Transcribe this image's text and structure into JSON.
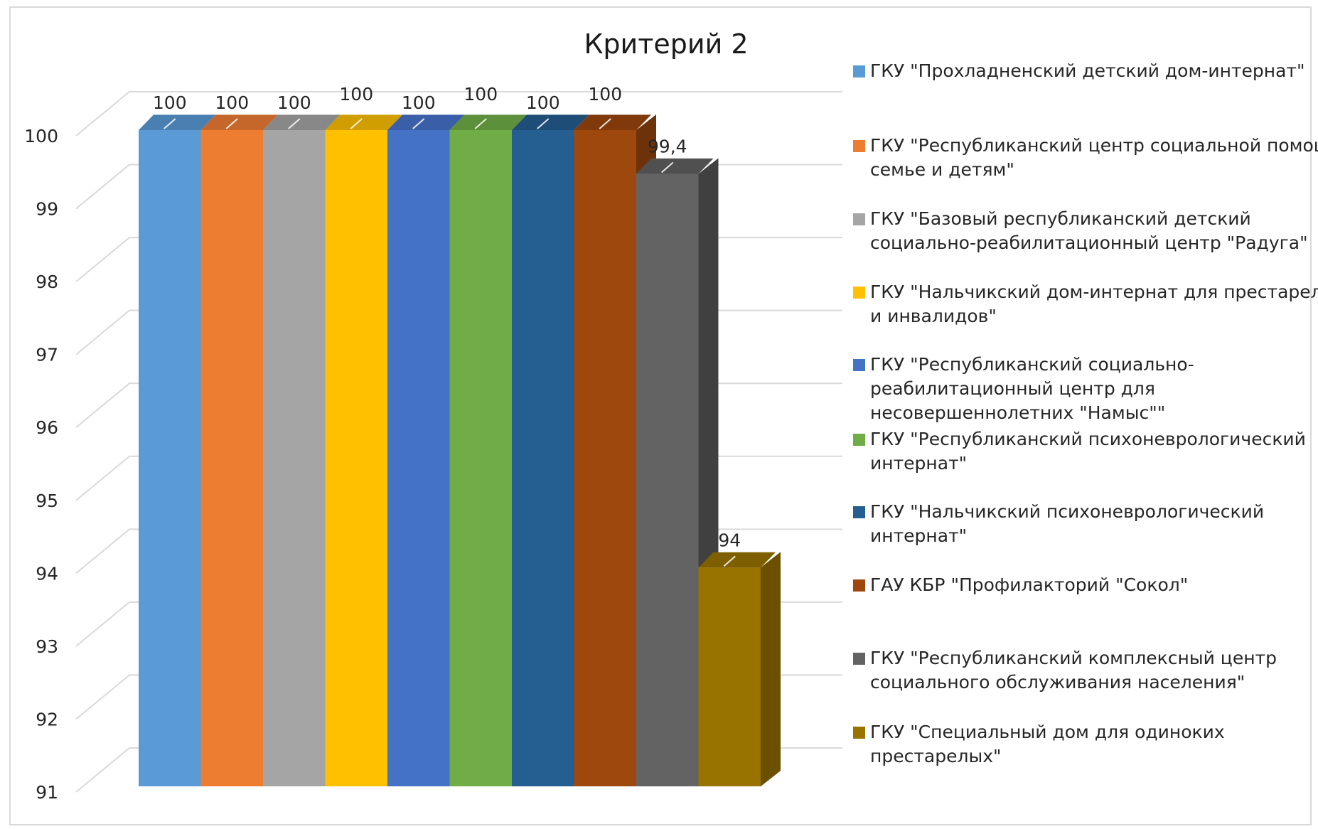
{
  "chart_data": {
    "type": "bar",
    "title": "Критерий 2",
    "xlabel": "",
    "ylabel": "",
    "ylim": [
      91,
      100
    ],
    "yticks": [
      "91",
      "92",
      "93",
      "94",
      "95",
      "96",
      "97",
      "98",
      "99",
      "100"
    ],
    "grid": true,
    "legend_position": "right",
    "series": [
      {
        "name": "ГКУ \"Прохладненский детский дом-интернат\"",
        "value": 100,
        "label": "100",
        "color": "#5B9BD5",
        "side": "#41719C",
        "top": "#4A7FB1"
      },
      {
        "name": "ГКУ \"Республиканский центр социальной помощи семье и детям\"",
        "value": 100,
        "label": "100",
        "color": "#ED7D31",
        "side": "#AE5A21",
        "top": "#C5672A"
      },
      {
        "name": "ГКУ \"Базовый республиканский детский социально-реабилитационный центр \"Радуга\"",
        "value": 100,
        "label": "100",
        "color": "#A5A5A5",
        "side": "#787878",
        "top": "#888888"
      },
      {
        "name": "ГКУ \"Нальчикский дом-интернат для престарелых и инвалидов\"",
        "value": 100,
        "label": "100",
        "color": "#FFC000",
        "side": "#BC8C00",
        "top": "#D09E00"
      },
      {
        "name": "ГКУ \"Республиканский социально-реабилитационный центр для несовершеннолетних \"Намыс\"\"",
        "value": 100,
        "label": "100",
        "color": "#4472C4",
        "side": "#2F528F",
        "top": "#3A5FA8"
      },
      {
        "name": "ГКУ \"Республиканский психоневрологический интернат\"",
        "value": 100,
        "label": "100",
        "color": "#70AD47",
        "side": "#507E32",
        "top": "#5C903A"
      },
      {
        "name": "ГКУ \"Нальчикский психоневрологический интернат\"",
        "value": 100,
        "label": "100",
        "color": "#255E91",
        "side": "#1A4468",
        "top": "#1E4D77"
      },
      {
        "name": "ГАУ КБР \"Профилакторий \"Сокол\"",
        "value": 100,
        "label": "100",
        "color": "#9E480E",
        "side": "#6E320A",
        "top": "#80390B"
      },
      {
        "name": "ГКУ \"Республиканский комплексный центр социального обслуживания населения\"",
        "value": 99.4,
        "label": "99,4",
        "color": "#636363",
        "side": "#404040",
        "top": "#505050"
      },
      {
        "name": "ГКУ \"Специальный дом для одиноких престарелых\"",
        "value": 94,
        "label": "94",
        "color": "#997300",
        "side": "#6B5000",
        "top": "#7E5F00"
      }
    ],
    "legend_lines": [
      [
        "ГКУ \"Прохладненский детский дом-интернат\""
      ],
      [
        "ГКУ \"Республиканский центр социальной помощи",
        "семье и детям\""
      ],
      [
        "ГКУ \"Базовый республиканский детский",
        "социально-реабилитационный центр \"Радуга\""
      ],
      [
        "ГКУ \"Нальчикский дом-интернат для престарелых",
        "и инвалидов\""
      ],
      [
        "ГКУ \"Республиканский социально-",
        "реабилитационный центр для",
        "несовершеннолетних \"Намыс\"\""
      ],
      [
        "ГКУ \"Республиканский психоневрологический",
        "интернат\""
      ],
      [
        "ГКУ \"Нальчикский психоневрологический",
        "интернат\""
      ],
      [
        "ГАУ КБР \"Профилакторий \"Сокол\""
      ],
      [
        "ГКУ \"Республиканский комплексный центр",
        "социального обслуживания населения\""
      ],
      [
        "ГКУ \"Специальный дом для одиноких",
        "престарелых\""
      ]
    ]
  }
}
